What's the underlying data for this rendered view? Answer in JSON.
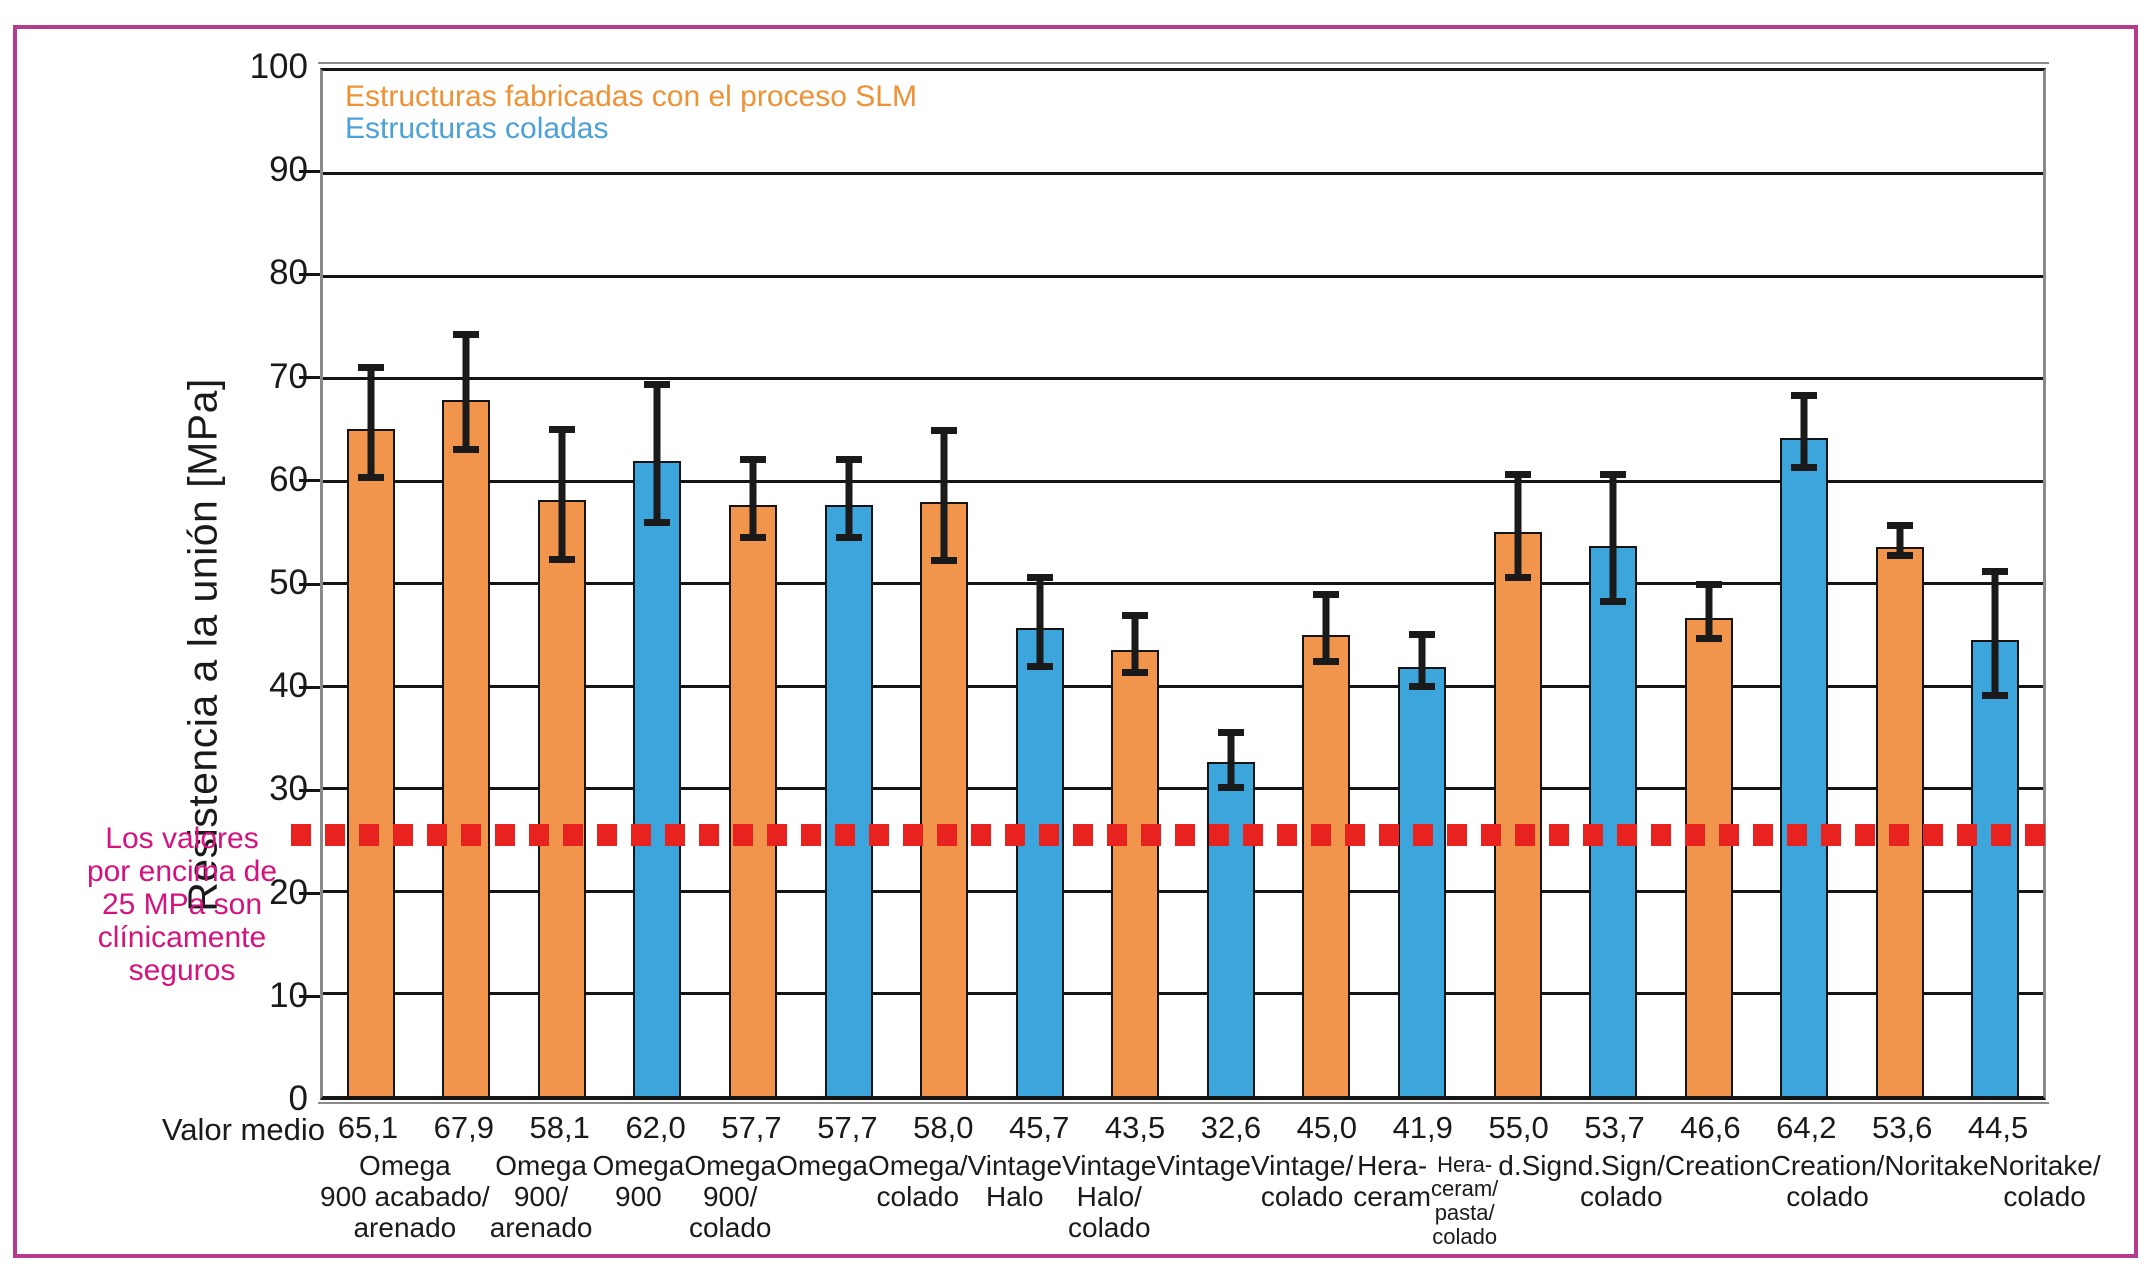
{
  "page": {
    "border_color": "#b53b8e"
  },
  "annotation": {
    "text": "Los valores\npor encima de\n25 MPa son\nclínicamente\nseguros",
    "color": "#d4137f"
  },
  "chart_data": {
    "type": "bar",
    "title": "",
    "xlabel": "",
    "ylabel": "Resistencia a la unión [MPa]",
    "ylim": [
      0,
      100
    ],
    "yticks": [
      0,
      10,
      20,
      30,
      40,
      50,
      60,
      70,
      80,
      90,
      100
    ],
    "grid": "horizontal",
    "legend_position": "top-left-inside",
    "row_label": "Valor medio",
    "legend": [
      {
        "label": "Estructuras fabricadas con el proceso SLM",
        "color": "#ee9235",
        "series": "slm"
      },
      {
        "label": "Estructuras coladas",
        "color": "#4ba1d8",
        "series": "colada"
      }
    ],
    "bar_colors": {
      "slm": "#F0954B",
      "colada": "#3BA5DC"
    },
    "threshold": {
      "value": 25.5,
      "stated_value_mpa": 25,
      "color": "#e8231f",
      "style": "dashed-squares",
      "meaning": "Los valores por encima de 25 MPa son clínicamente seguros"
    },
    "bars": [
      {
        "label": "Omega\n900 acabado/\narenado",
        "mean_label": "65,1",
        "value": 65.1,
        "err_hi": 71.4,
        "err_lo": 60.0,
        "group": "slm"
      },
      {
        "label": "Omega\n900/\narenado",
        "mean_label": "67,9",
        "value": 67.9,
        "err_hi": 74.6,
        "err_lo": 62.7,
        "group": "slm"
      },
      {
        "label": "Omega\n900",
        "mean_label": "58,1",
        "value": 58.1,
        "err_hi": 65.4,
        "err_lo": 52.0,
        "group": "slm"
      },
      {
        "label": "Omega\n900/\ncolado",
        "mean_label": "62,0",
        "value": 62.0,
        "err_hi": 69.8,
        "err_lo": 55.6,
        "group": "colada"
      },
      {
        "label": "Omega",
        "mean_label": "57,7",
        "value": 57.7,
        "err_hi": 62.4,
        "err_lo": 54.1,
        "group": "slm"
      },
      {
        "label": "Omega/\ncolado",
        "mean_label": "57,7",
        "value": 57.7,
        "err_hi": 62.4,
        "err_lo": 54.1,
        "group": "colada"
      },
      {
        "label": "Vintage\nHalo",
        "mean_label": "58,0",
        "value": 58.0,
        "err_hi": 65.3,
        "err_lo": 51.9,
        "group": "slm"
      },
      {
        "label": "Vintage\nHalo/\ncolado",
        "mean_label": "45,7",
        "value": 45.7,
        "err_hi": 50.9,
        "err_lo": 41.6,
        "group": "colada"
      },
      {
        "label": "Vintage",
        "mean_label": "43,5",
        "value": 43.5,
        "err_hi": 47.2,
        "err_lo": 41.0,
        "group": "slm"
      },
      {
        "label": "Vintage/\ncolado",
        "mean_label": "32,6",
        "value": 32.6,
        "err_hi": 35.8,
        "err_lo": 29.8,
        "group": "colada"
      },
      {
        "label": "Hera-\nceram",
        "mean_label": "45,0",
        "value": 45.0,
        "err_hi": 49.3,
        "err_lo": 42.0,
        "group": "slm"
      },
      {
        "label": "Hera-\nceram/\npasta/\ncolado",
        "mean_label": "41,9",
        "value": 41.9,
        "err_hi": 45.4,
        "err_lo": 39.6,
        "group": "colada"
      },
      {
        "label": "d.Sign",
        "mean_label": "55,0",
        "value": 55.0,
        "err_hi": 61.0,
        "err_lo": 50.2,
        "group": "slm"
      },
      {
        "label": "d.Sign/\ncolado",
        "mean_label": "53,7",
        "value": 53.7,
        "err_hi": 61.0,
        "err_lo": 47.9,
        "group": "colada"
      },
      {
        "label": "Creation",
        "mean_label": "46,6",
        "value": 46.6,
        "err_hi": 50.2,
        "err_lo": 44.3,
        "group": "slm"
      },
      {
        "label": "Creation/\ncolado",
        "mean_label": "64,2",
        "value": 64.2,
        "err_hi": 68.7,
        "err_lo": 61.0,
        "group": "colada"
      },
      {
        "label": "Noritake",
        "mean_label": "53,6",
        "value": 53.6,
        "err_hi": 56.0,
        "err_lo": 52.4,
        "group": "slm"
      },
      {
        "label": "Noritake/\ncolado",
        "mean_label": "44,5",
        "value": 44.5,
        "err_hi": 51.5,
        "err_lo": 38.7,
        "group": "colada"
      }
    ]
  }
}
